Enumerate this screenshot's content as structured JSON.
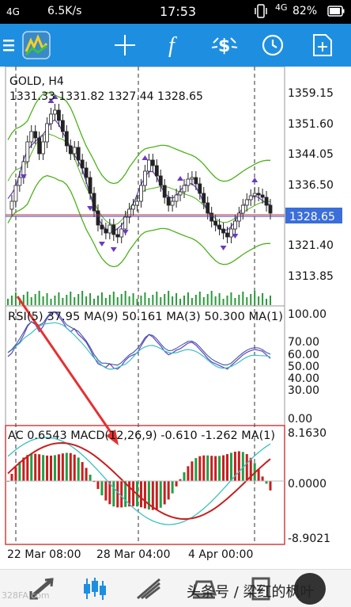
{
  "status_bar": {
    "network_left": "4G",
    "speed": "6.5K/s",
    "time": "17:53",
    "network_right": "4G",
    "battery": "82%"
  },
  "toolbar": {
    "icons": [
      "menu-icon",
      "mt-logo-icon",
      "crosshair-icon",
      "function-icon",
      "one-click-trading-icon",
      "clock-icon",
      "new-document-icon"
    ]
  },
  "main_chart": {
    "symbol": "GOLD, H4",
    "ohlc": "1331.33 1331.82 1327.44 1328.65",
    "price_ticks": [
      "1359.15",
      "1351.60",
      "1344.05",
      "1336.50",
      "1321.40",
      "1313.85"
    ],
    "current_price": "1328.65"
  },
  "rsi_panel": {
    "label": "RSI(5) 37.95 MA(9) 50.161 MA(3) 50.300 MA(1)",
    "ticks": [
      "100.00",
      "70.00",
      "60.00",
      "50.00",
      "40.00",
      "30.00",
      "0.00"
    ]
  },
  "ac_panel": {
    "label": "AC 0.6543 MACD(12,26,9) -0.610 -1.262 MA(1)",
    "ticks": [
      "8.1630",
      "0.0000",
      "-8.9021"
    ]
  },
  "time_axis": [
    "22 Mar 08:00",
    "28 Mar 04:00",
    "4 Apr 00:00"
  ],
  "bottom_nav": {
    "items": [
      "trade-icon",
      "chart-icon",
      "history-icon",
      "messages-icon",
      "news-icon"
    ]
  },
  "watermarks": {
    "left": "328FA.com",
    "right": "头条号 / 梁红的枫叶"
  },
  "colors": {
    "status_bg": "#000000",
    "toolbar_bg": "#1e8fe0",
    "bull": "#1ea046",
    "bear": "#c81e1e",
    "bollinger": "#4cb21a",
    "ma_purple": "#6a3bbf",
    "rsi_cyan": "#38c1c0",
    "annotation_red": "#e53030"
  }
}
